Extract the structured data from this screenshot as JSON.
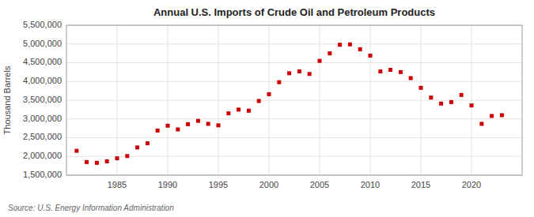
{
  "chart_data": {
    "type": "scatter",
    "title": "Annual U.S. Imports of Crude Oil and Petroleum Products",
    "ylabel": "Thousand Barrels",
    "source": "Source: U.S. Energy Information Administration",
    "color": "#cc0000",
    "marker": "square",
    "grid": true,
    "xlim": [
      1980,
      2025
    ],
    "xticks": [
      1985,
      1990,
      1995,
      2000,
      2005,
      2010,
      2015,
      2020
    ],
    "ylim": [
      1500000,
      5500000
    ],
    "yticks": [
      {
        "value": 1500000,
        "label": "1,500,000"
      },
      {
        "value": 2000000,
        "label": "2,000,000"
      },
      {
        "value": 2500000,
        "label": "2,500,000"
      },
      {
        "value": 3000000,
        "label": "3,000,000"
      },
      {
        "value": 3500000,
        "label": "3,500,000"
      },
      {
        "value": 4000000,
        "label": "4,000,000"
      },
      {
        "value": 4500000,
        "label": "4,500,000"
      },
      {
        "value": 5000000,
        "label": "5,000,000"
      },
      {
        "value": 5500000,
        "label": "5,500,000"
      }
    ],
    "x": [
      1981,
      1982,
      1983,
      1984,
      1985,
      1986,
      1987,
      1988,
      1989,
      1990,
      1991,
      1992,
      1993,
      1994,
      1995,
      1996,
      1997,
      1998,
      1999,
      2000,
      2001,
      2002,
      2003,
      2004,
      2005,
      2006,
      2007,
      2008,
      2009,
      2010,
      2011,
      2012,
      2013,
      2014,
      2015,
      2016,
      2017,
      2018,
      2019,
      2020,
      2021,
      2022,
      2023
    ],
    "values": [
      2150000,
      1850000,
      1830000,
      1870000,
      1950000,
      2010000,
      2240000,
      2350000,
      2690000,
      2820000,
      2720000,
      2860000,
      2950000,
      2870000,
      2830000,
      3150000,
      3250000,
      3220000,
      3480000,
      3660000,
      3980000,
      4220000,
      4270000,
      4200000,
      4550000,
      4750000,
      4980000,
      4990000,
      4860000,
      4690000,
      4270000,
      4310000,
      4250000,
      4090000,
      3830000,
      3570000,
      3410000,
      3450000,
      3640000,
      3360000,
      2870000,
      3080000,
      3100000
    ]
  }
}
